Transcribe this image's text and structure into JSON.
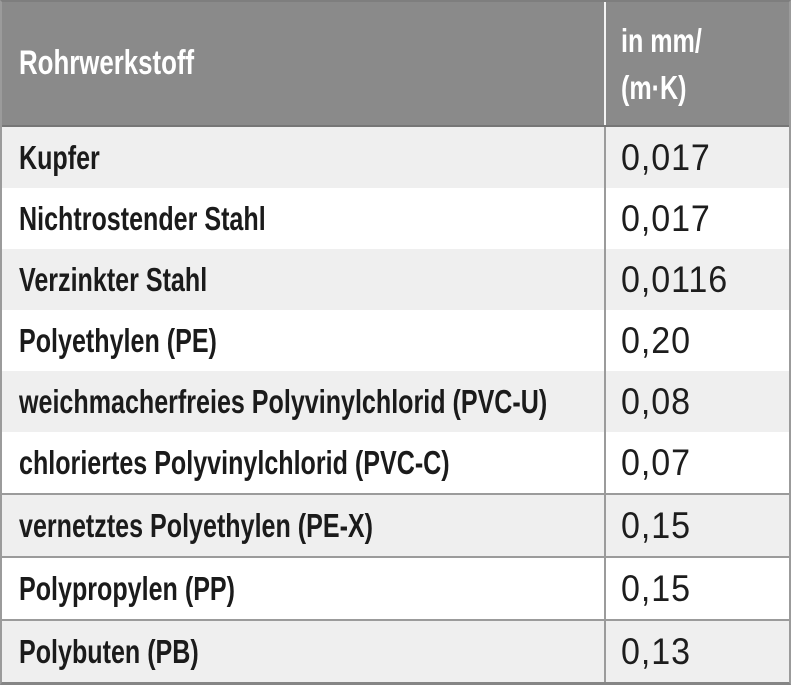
{
  "table": {
    "header": {
      "material_label": "Rohrwerkstoff",
      "unit_line1": "in mm/",
      "unit_line2": "(m·K)"
    },
    "rows": [
      {
        "material": "Kupfer",
        "value": "0,017"
      },
      {
        "material": "Nichtrostender Stahl",
        "value": "0,017"
      },
      {
        "material": "Verzinkter Stahl",
        "value": "0,0116"
      },
      {
        "material": "Polyethylen (PE)",
        "value": "0,20"
      },
      {
        "material": "weichmacherfreies Polyvinylchlorid (PVC-U)",
        "value": "0,08"
      },
      {
        "material": "chloriertes Polyvinylchlorid (PVC-C)",
        "value": "0,07"
      },
      {
        "material": "vernetztes Polyethylen (PE-X)",
        "value": "0,15"
      },
      {
        "material": "Polypropylen (PP)",
        "value": "0,15"
      },
      {
        "material": "Polybuten (PB)",
        "value": "0,13"
      }
    ],
    "colors": {
      "header_bg": "#8a8a8a",
      "row_alt_bg": "#efefef",
      "grid_line": "#9b9b9b",
      "header_text": "#ffffff",
      "body_text": "#1b1b1b"
    }
  }
}
